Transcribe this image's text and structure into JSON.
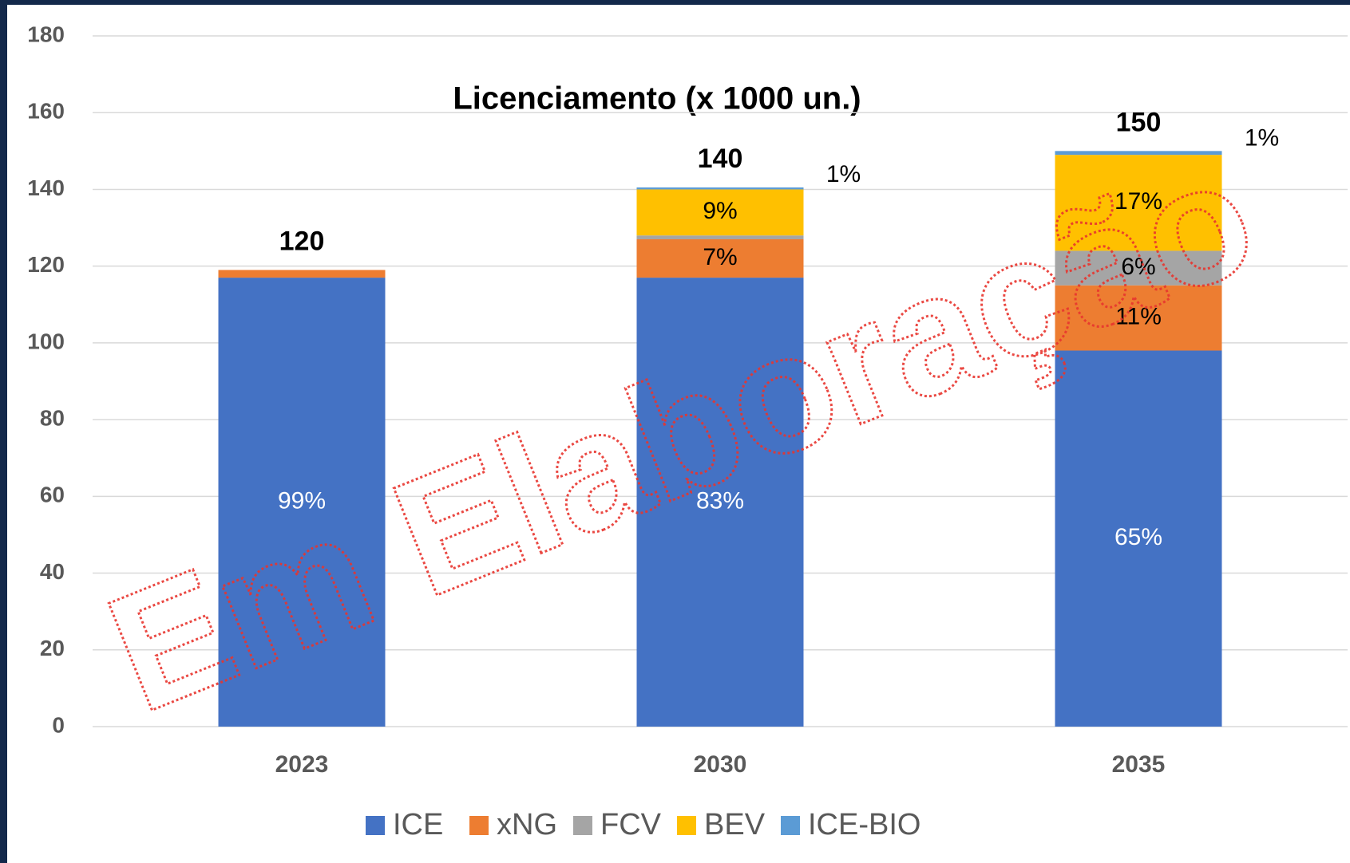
{
  "chart_data": {
    "type": "stacked_bar",
    "title": "Licenciamento (x 1000 un.)",
    "watermark": "Em Elaboração",
    "categories": [
      "2023",
      "2030",
      "2035"
    ],
    "series": [
      {
        "name": "ICE",
        "color": "#4472c4",
        "values": [
          117,
          117,
          98
        ],
        "labels": [
          "99%",
          "83%",
          "65%"
        ]
      },
      {
        "name": "xNG",
        "color": "#ed7d31",
        "values": [
          2,
          10,
          17
        ],
        "labels": [
          null,
          "7%",
          "11%"
        ]
      },
      {
        "name": "FCV",
        "color": "#a5a5a5",
        "values": [
          0,
          1,
          9
        ],
        "labels": [
          null,
          null,
          "6%"
        ]
      },
      {
        "name": "BEV",
        "color": "#ffc000",
        "values": [
          0,
          12,
          25
        ],
        "labels": [
          null,
          "9%",
          "17%"
        ]
      },
      {
        "name": "ICE-BIO",
        "color": "#5b9bd5",
        "values": [
          0,
          0.5,
          1
        ],
        "labels": [
          null,
          "1%",
          "1%"
        ]
      }
    ],
    "totals": [
      120,
      140,
      150
    ],
    "ylim": [
      0,
      180
    ],
    "yticks": [
      0,
      20,
      40,
      60,
      80,
      100,
      120,
      140,
      160,
      180
    ],
    "grid": true,
    "legend": "bottom"
  }
}
